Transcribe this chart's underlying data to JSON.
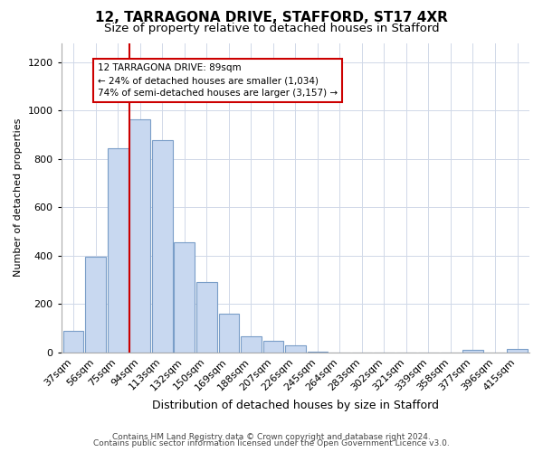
{
  "title1": "12, TARRAGONA DRIVE, STAFFORD, ST17 4XR",
  "title2": "Size of property relative to detached houses in Stafford",
  "xlabel": "Distribution of detached houses by size in Stafford",
  "ylabel": "Number of detached properties",
  "categories": [
    "37sqm",
    "56sqm",
    "75sqm",
    "94sqm",
    "113sqm",
    "132sqm",
    "150sqm",
    "169sqm",
    "188sqm",
    "207sqm",
    "226sqm",
    "245sqm",
    "264sqm",
    "283sqm",
    "302sqm",
    "321sqm",
    "339sqm",
    "358sqm",
    "377sqm",
    "396sqm",
    "415sqm"
  ],
  "values": [
    90,
    395,
    845,
    965,
    880,
    455,
    290,
    160,
    68,
    50,
    30,
    5,
    0,
    0,
    0,
    0,
    0,
    0,
    10,
    0,
    14
  ],
  "bar_color": "#c8d8f0",
  "bar_edge_color": "#7a9ec8",
  "vline_color": "#cc0000",
  "annotation_text": "12 TARRAGONA DRIVE: 89sqm\n← 24% of detached houses are smaller (1,034)\n74% of semi-detached houses are larger (3,157) →",
  "annotation_box_color": "white",
  "annotation_box_edge_color": "#cc0000",
  "ylim": [
    0,
    1280
  ],
  "yticks": [
    0,
    200,
    400,
    600,
    800,
    1000,
    1200
  ],
  "footer1": "Contains HM Land Registry data © Crown copyright and database right 2024.",
  "footer2": "Contains public sector information licensed under the Open Government Licence v3.0.",
  "bg_color": "#ffffff",
  "plot_bg_color": "#ffffff",
  "grid_color": "#d0d8e8",
  "title1_fontsize": 11,
  "title2_fontsize": 9.5,
  "xlabel_fontsize": 9,
  "ylabel_fontsize": 8,
  "tick_fontsize": 8,
  "footer_fontsize": 6.5
}
